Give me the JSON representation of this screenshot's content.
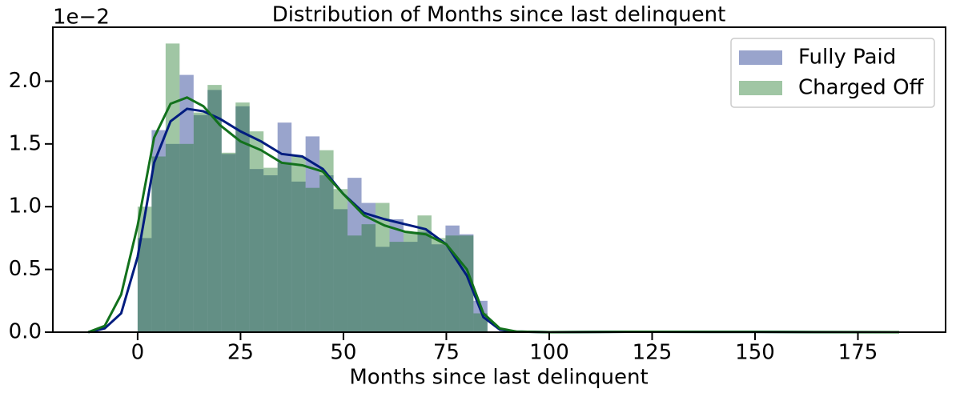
{
  "chart_data": {
    "type": "histogram",
    "title": "Distribution of Months since last delinquent",
    "x_label": "Months since last delinquent",
    "y_offset_label": "1e−2",
    "bins": [
      0,
      3.4,
      6.8,
      10.2,
      13.6,
      17,
      20.4,
      23.8,
      27.2,
      30.6,
      34,
      37.4,
      40.8,
      44.2,
      47.6,
      51,
      54.4,
      57.8,
      61.2,
      64.6,
      68,
      71.4,
      74.8,
      78.2,
      81.6,
      85
    ],
    "series": [
      {
        "name": "Fully Paid",
        "color": "#001c7f",
        "values": [
          0.75,
          1.61,
          1.5,
          2.05,
          1.73,
          1.93,
          1.42,
          1.8,
          1.3,
          1.25,
          1.67,
          1.2,
          1.56,
          1.25,
          0.98,
          1.23,
          1.03,
          0.68,
          0.9,
          0.72,
          0.8,
          0.7,
          0.85,
          0.78,
          0.25
        ],
        "kde": [
          0,
          0.03,
          0.15,
          0.6,
          1.35,
          1.68,
          1.78,
          1.76,
          1.7,
          1.6,
          1.52,
          1.42,
          1.4,
          1.3,
          1.1,
          0.95,
          0.9,
          0.86,
          0.82,
          0.7,
          0.45,
          0.12,
          0.02,
          0.005,
          0,
          0.003,
          0.002,
          0
        ]
      },
      {
        "name": "Charged Off",
        "color": "#12711c",
        "values": [
          1.0,
          1.4,
          2.3,
          1.5,
          1.75,
          1.97,
          1.43,
          1.83,
          1.6,
          1.31,
          1.35,
          1.4,
          1.15,
          1.45,
          1.14,
          0.77,
          0.86,
          1.03,
          0.72,
          0.8,
          0.93,
          0.75,
          0.77,
          0.77,
          0.15
        ],
        "kde": [
          0,
          0.05,
          0.3,
          0.85,
          1.55,
          1.82,
          1.87,
          1.8,
          1.65,
          1.52,
          1.45,
          1.35,
          1.33,
          1.28,
          1.1,
          0.93,
          0.85,
          0.8,
          0.78,
          0.7,
          0.5,
          0.15,
          0.03,
          0.005,
          0,
          0.003,
          0.002,
          0
        ]
      }
    ],
    "kde_x": [
      -12,
      -8,
      -4,
      0,
      4,
      8,
      12,
      16,
      20,
      25,
      30,
      35,
      40,
      45,
      50,
      55,
      60,
      65,
      70,
      75,
      80,
      84,
      88,
      92,
      100,
      120,
      150,
      185
    ],
    "hist_alpha": 0.4,
    "xlim": [
      -20.6,
      196.3
    ],
    "ylim": [
      0,
      2.43
    ],
    "xticks": [
      0,
      25,
      50,
      75,
      100,
      125,
      150,
      175
    ],
    "yticks": [
      {
        "value": 0,
        "label": "0.0"
      },
      0.5,
      {
        "value": 1,
        "label": "1.0"
      },
      1.5,
      {
        "value": 2,
        "label": "2.0"
      }
    ],
    "legend": "upper right"
  }
}
